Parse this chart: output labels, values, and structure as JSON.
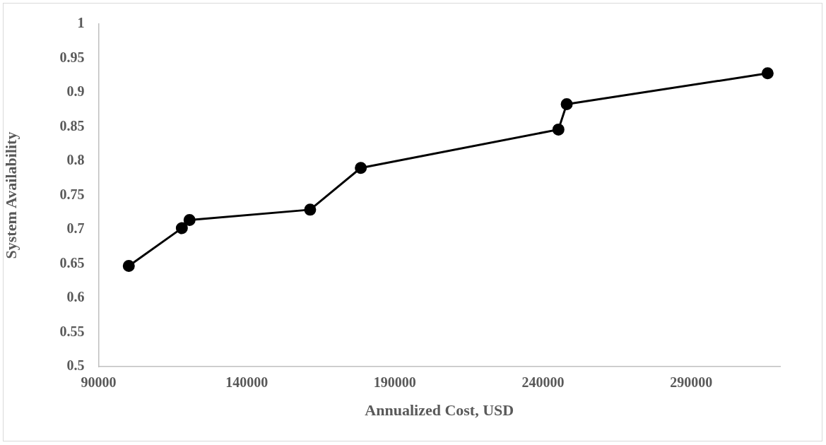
{
  "chart_data": {
    "type": "line",
    "xlabel": "Annualized Cost, USD",
    "ylabel": "System Availability",
    "x": [
      100200,
      118100,
      120700,
      161400,
      178500,
      245200,
      248000,
      315800
    ],
    "series": [
      {
        "color": "#000000",
        "values": [
          0.647,
          0.702,
          0.714,
          0.729,
          0.79,
          0.846,
          0.883,
          0.928
        ]
      }
    ],
    "xlim": [
      90000,
      320000
    ],
    "xticks": [
      90000,
      140000,
      190000,
      240000,
      290000
    ],
    "ylim": [
      0.5,
      1
    ],
    "yticks": [
      0.5,
      0.55,
      0.6,
      0.65,
      0.7,
      0.75,
      0.8,
      0.85,
      0.9,
      0.95,
      1
    ],
    "grid": false,
    "legend": false,
    "marker": "circle",
    "line_style": "solid"
  }
}
